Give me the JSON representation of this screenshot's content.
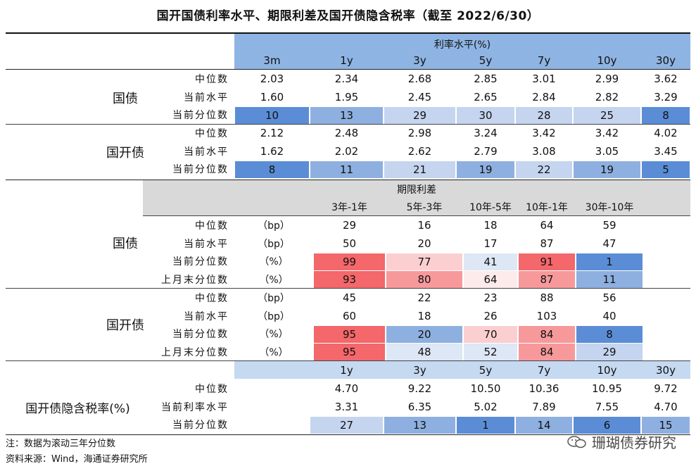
{
  "title": "国开国债利率水平、期限利差及国开债隐含税率（截至 2022/6/30）",
  "colors": {
    "header_blue": "#8eb4e3",
    "header_gray": "#d9d9d9",
    "header_light_blue": "#c5d9f1",
    "blue_1": "#5b8dd6",
    "blue_2": "#8eb0e0",
    "blue_3": "#c5d5ef",
    "blue_4": "#dde7f5",
    "red_1": "#f4676a",
    "red_2": "#f7999b",
    "red_3": "#fbcfd0",
    "red_4": "#fdeaea"
  },
  "section1": {
    "band_label": "利率水平(%)",
    "columns": [
      "3m",
      "1y",
      "3y",
      "5y",
      "7y",
      "10y",
      "30y"
    ],
    "groups": [
      {
        "name": "国债",
        "rows": [
          {
            "label": "中位数",
            "values": [
              "2.03",
              "2.34",
              "2.68",
              "2.85",
              "3.01",
              "2.99",
              "3.62"
            ]
          },
          {
            "label": "当前水平",
            "values": [
              "1.60",
              "1.95",
              "2.45",
              "2.65",
              "2.84",
              "2.82",
              "3.29"
            ]
          },
          {
            "label": "当前分位数",
            "values": [
              "10",
              "13",
              "29",
              "30",
              "28",
              "25",
              "8"
            ]
          }
        ]
      },
      {
        "name": "国开债",
        "rows": [
          {
            "label": "中位数",
            "values": [
              "2.12",
              "2.48",
              "2.98",
              "3.24",
              "3.42",
              "3.42",
              "4.02"
            ]
          },
          {
            "label": "当前水平",
            "values": [
              "1.62",
              "2.02",
              "2.62",
              "2.79",
              "3.08",
              "3.05",
              "3.45"
            ]
          },
          {
            "label": "当前分位数",
            "values": [
              "8",
              "11",
              "21",
              "19",
              "22",
              "19",
              "5"
            ]
          }
        ]
      }
    ]
  },
  "section2": {
    "band_label": "期限利差",
    "columns": [
      "3年-1年",
      "5年-3年",
      "10年-5年",
      "10年-1年",
      "30年-10年"
    ],
    "groups": [
      {
        "name": "国债",
        "rows": [
          {
            "label": "中位数",
            "unit": "（bp）",
            "values": [
              "29",
              "16",
              "18",
              "64",
              "59"
            ]
          },
          {
            "label": "当前水平",
            "unit": "（bp）",
            "values": [
              "50",
              "20",
              "17",
              "87",
              "47"
            ]
          },
          {
            "label": "当前分位数",
            "unit": "（%）",
            "values": [
              "99",
              "77",
              "41",
              "91",
              "1"
            ]
          },
          {
            "label": "上月末分位数",
            "unit": "（%）",
            "values": [
              "93",
              "80",
              "64",
              "87",
              "11"
            ]
          }
        ]
      },
      {
        "name": "国开债",
        "rows": [
          {
            "label": "中位数",
            "unit": "（bp）",
            "values": [
              "45",
              "22",
              "23",
              "88",
              "56"
            ]
          },
          {
            "label": "当前水平",
            "unit": "（bp）",
            "values": [
              "60",
              "18",
              "26",
              "103",
              "40"
            ]
          },
          {
            "label": "当前分位数",
            "unit": "（%）",
            "values": [
              "95",
              "20",
              "70",
              "84",
              "8"
            ]
          },
          {
            "label": "上月末分位数",
            "unit": "（%）",
            "values": [
              "95",
              "48",
              "52",
              "84",
              "29"
            ]
          }
        ]
      }
    ]
  },
  "section3": {
    "name": "国开债隐含税率(%)",
    "columns": [
      "1y",
      "3y",
      "5y",
      "7y",
      "10y",
      "30y"
    ],
    "rows": [
      {
        "label": "中位数",
        "values": [
          "4.70",
          "9.22",
          "10.50",
          "10.36",
          "10.95",
          "9.72"
        ]
      },
      {
        "label": "当前利率水平",
        "values": [
          "3.31",
          "6.35",
          "5.02",
          "7.89",
          "7.55",
          "4.70"
        ]
      },
      {
        "label": "当前分位数",
        "values": [
          "27",
          "13",
          "1",
          "14",
          "6",
          "15"
        ]
      }
    ]
  },
  "notes": {
    "note": "注：数据为滚动三年分位数",
    "source": "资料来源：Wind，海通证券研究所"
  },
  "watermark": "珊瑚债券研究"
}
